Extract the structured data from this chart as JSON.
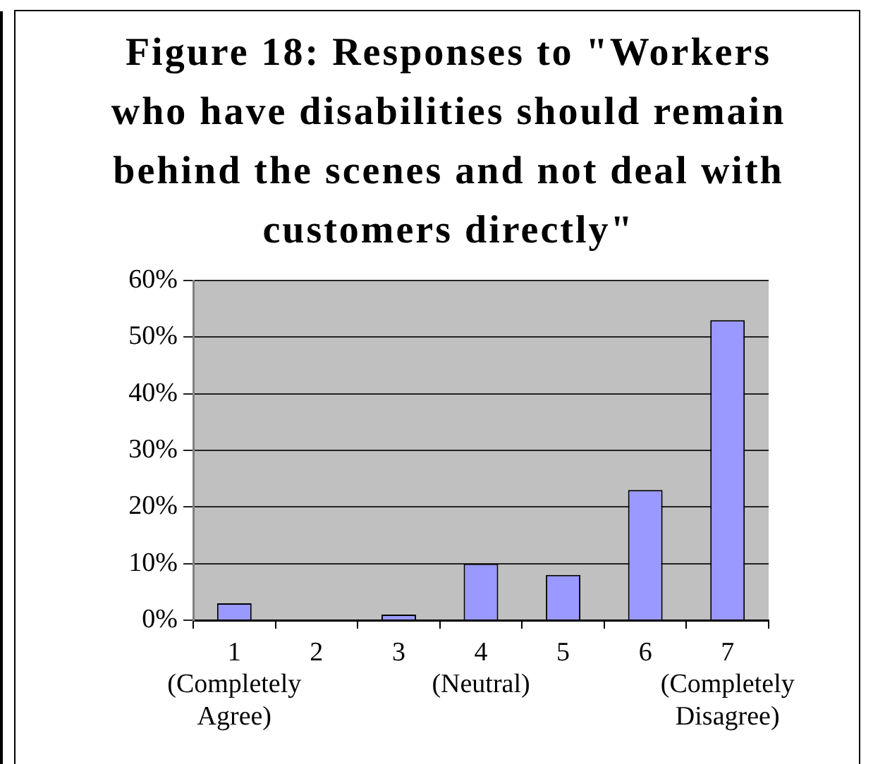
{
  "chart_data": {
    "type": "bar",
    "title": "Figure 18: Responses to \"Workers who have disabilities should remain behind the scenes and not deal with customers directly\"",
    "categories": [
      "1 (Completely Agree)",
      "2",
      "3",
      "4 (Neutral)",
      "5",
      "6",
      "7 (Completely Disagree)"
    ],
    "values": [
      3,
      0,
      1,
      10,
      8,
      23,
      53
    ],
    "color": "#9999ff",
    "ylim": [
      0,
      60
    ],
    "yticks": [
      {
        "value": 0,
        "label": "0%"
      },
      {
        "value": 10,
        "label": "10%"
      },
      {
        "value": 20,
        "label": "20%"
      },
      {
        "value": 30,
        "label": "30%"
      },
      {
        "value": 40,
        "label": "40%"
      },
      {
        "value": 50,
        "label": "50%"
      },
      {
        "value": 60,
        "label": "60%"
      }
    ],
    "grid": "y",
    "legend": false
  }
}
